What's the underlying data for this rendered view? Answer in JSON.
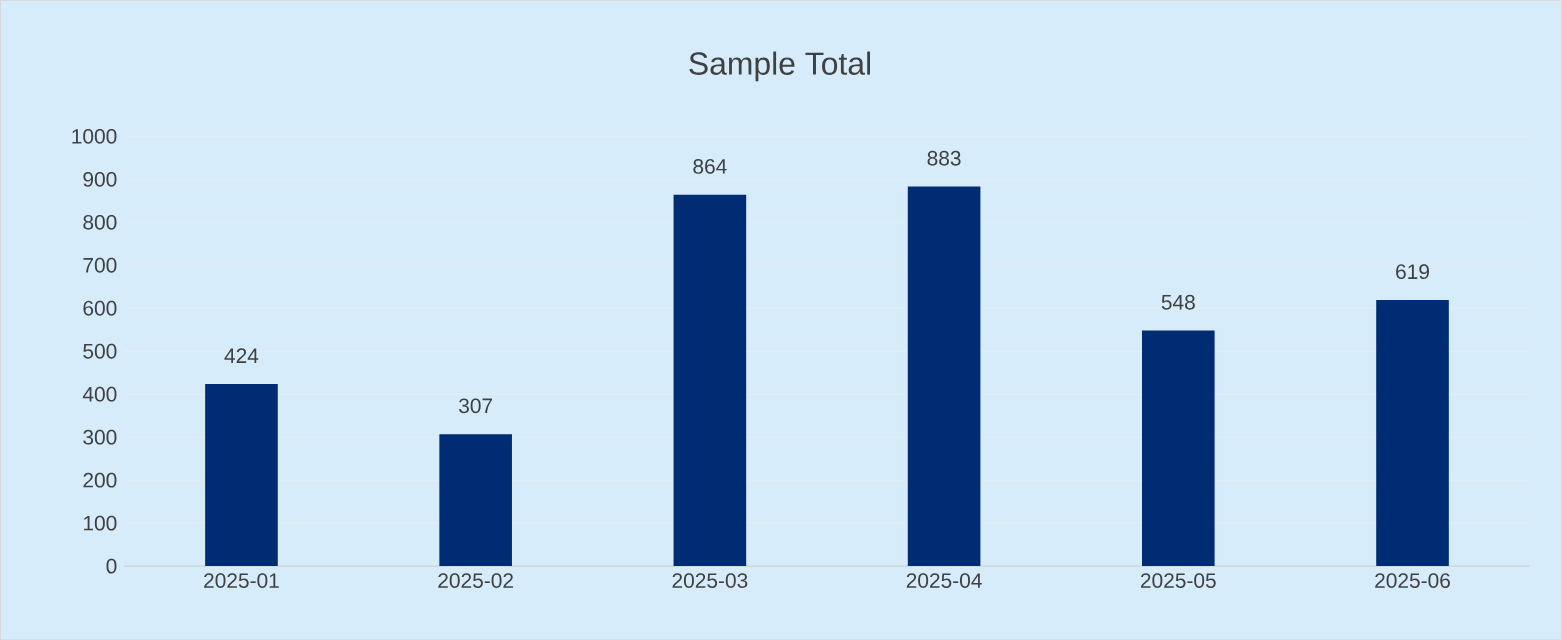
{
  "chart_data": {
    "type": "bar",
    "title": "Sample Total",
    "categories": [
      "2025-01",
      "2025-02",
      "2025-03",
      "2025-04",
      "2025-05",
      "2025-06"
    ],
    "values": [
      424,
      307,
      864,
      883,
      548,
      619
    ],
    "color": "#002c73",
    "ylim": [
      0,
      1000
    ],
    "yticks": [
      0,
      100,
      200,
      300,
      400,
      500,
      600,
      700,
      800,
      900,
      1000
    ],
    "grid": "y",
    "data_labels": true
  }
}
